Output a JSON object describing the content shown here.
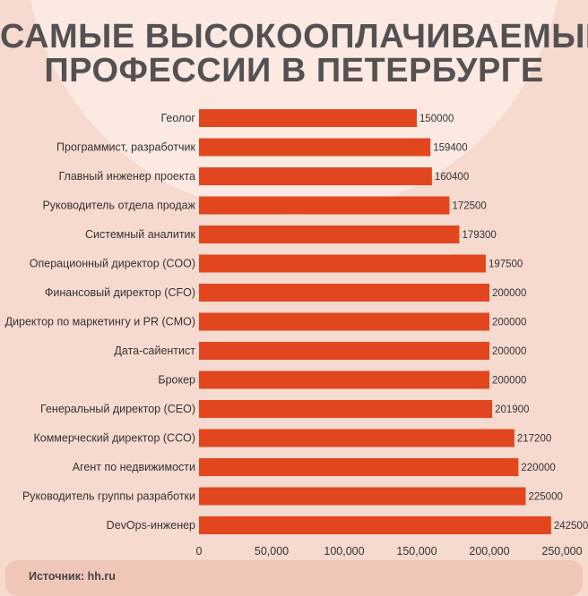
{
  "title": {
    "line1": "САМЫЕ ВЫСОКООПЛАЧИВАЕМЫЕ",
    "line2": "ПРОФЕССИИ В ПЕТЕРБУРГЕ"
  },
  "source": "Источник: hh.ru",
  "colors": {
    "bar": "#e2461e",
    "background": "#f6d9cf",
    "title": "#555152"
  },
  "chart_data": {
    "type": "bar",
    "orientation": "horizontal",
    "title": "САМЫЕ ВЫСОКООПЛАЧИВАЕМЫЕ ПРОФЕССИИ В ПЕТЕРБУРГЕ",
    "categories": [
      "Геолог",
      "Программист, разработчик",
      "Главный инженер проекта",
      "Руководитель отдела продаж",
      "Системный аналитик",
      "Операционный директор (COO)",
      "Финансовый директор (CFO)",
      "Директор по маркетингу и PR (CMO)",
      "Дата-сайентист",
      "Брокер",
      "Генеральный директор (CEO)",
      "Коммерческий директор (CCO)",
      "Агент по недвижимости",
      "Руководитель группы разработки",
      "DevOps-инженер"
    ],
    "values": [
      150000,
      159400,
      160400,
      172500,
      179300,
      197500,
      200000,
      200000,
      200000,
      200000,
      201900,
      217200,
      220000,
      225000,
      242500
    ],
    "value_labels": [
      "150000",
      "159400",
      "160400",
      "172500",
      "179300",
      "197500",
      "200000",
      "200000",
      "200000",
      "200000",
      "201900",
      "217200",
      "220000",
      "225000",
      "242500"
    ],
    "xticks": [
      "0",
      "50,000",
      "100,000",
      "150,000",
      "200,000",
      "250,000"
    ],
    "xtick_values": [
      0,
      50000,
      100000,
      150000,
      200000,
      250000
    ],
    "xlim": [
      0,
      250000
    ],
    "xlabel": "",
    "ylabel": "",
    "grid": false
  }
}
